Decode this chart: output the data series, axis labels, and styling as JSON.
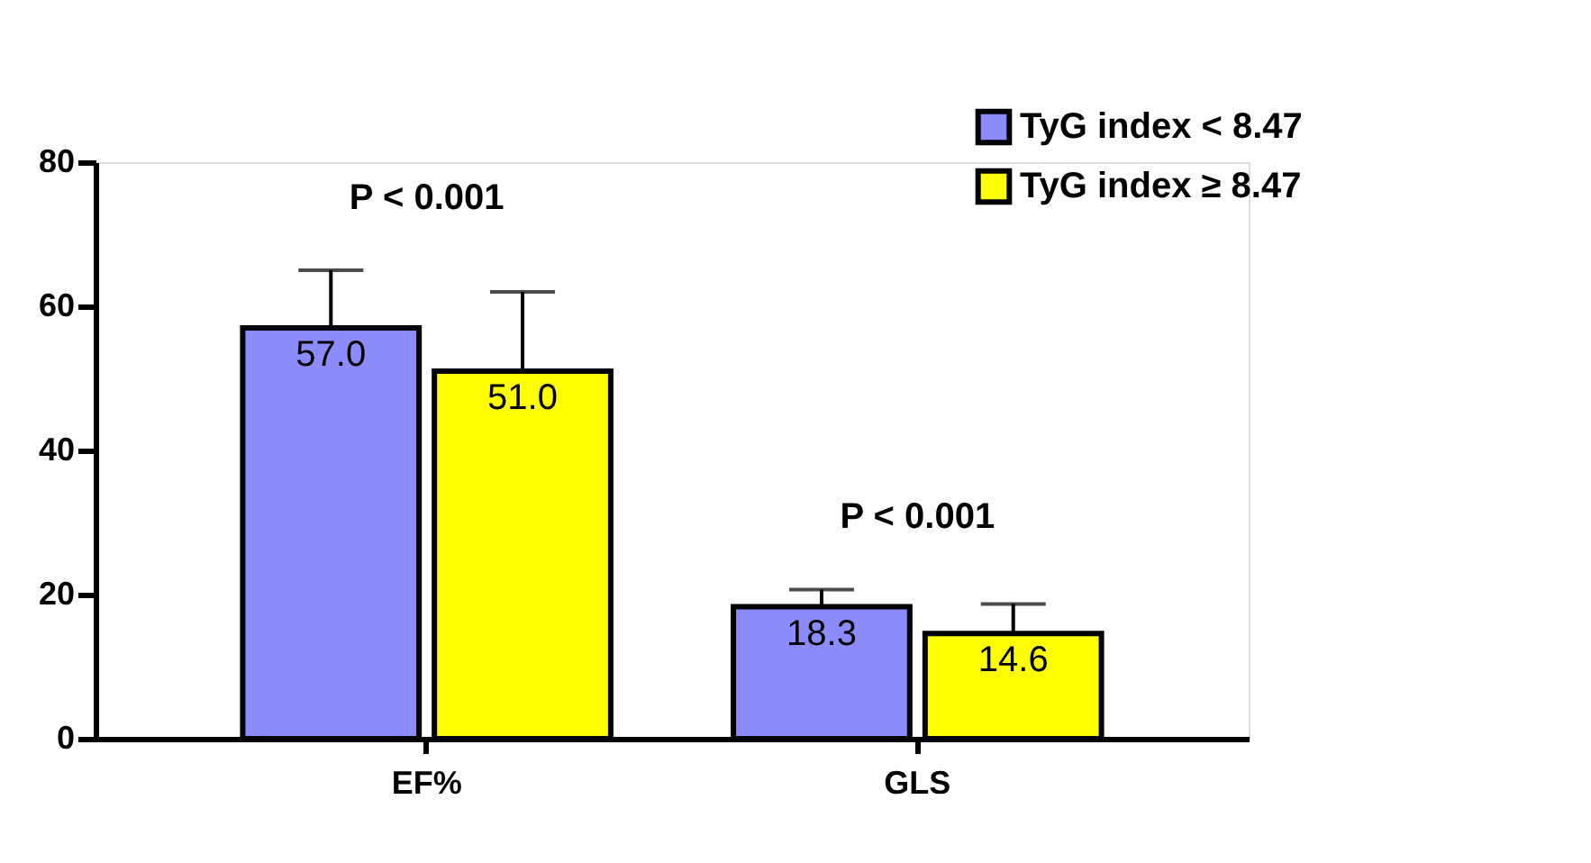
{
  "chart_data": {
    "type": "bar",
    "categories": [
      "EF%",
      "GLS"
    ],
    "series": [
      {
        "name": "TyG index < 8.47",
        "color": "#8c8cff",
        "values": [
          57.0,
          18.3
        ],
        "value_labels": [
          "57.0",
          "18.3"
        ],
        "errors": [
          [
            57.0,
            65
          ],
          [
            18.3,
            20.7
          ]
        ]
      },
      {
        "name": "TyG index ≥ 8.47",
        "color": "#ffff00",
        "values": [
          51.0,
          14.6
        ],
        "value_labels": [
          "51.0",
          "14.6"
        ],
        "errors": [
          [
            51.0,
            62
          ],
          [
            14.6,
            18.7
          ]
        ]
      }
    ],
    "ylim": [
      0,
      80
    ],
    "yticks": [
      0,
      20,
      40,
      60,
      80
    ],
    "legend": "top right",
    "grid": false,
    "annotations": [
      "P < 0.001",
      "P < 0.001"
    ]
  }
}
